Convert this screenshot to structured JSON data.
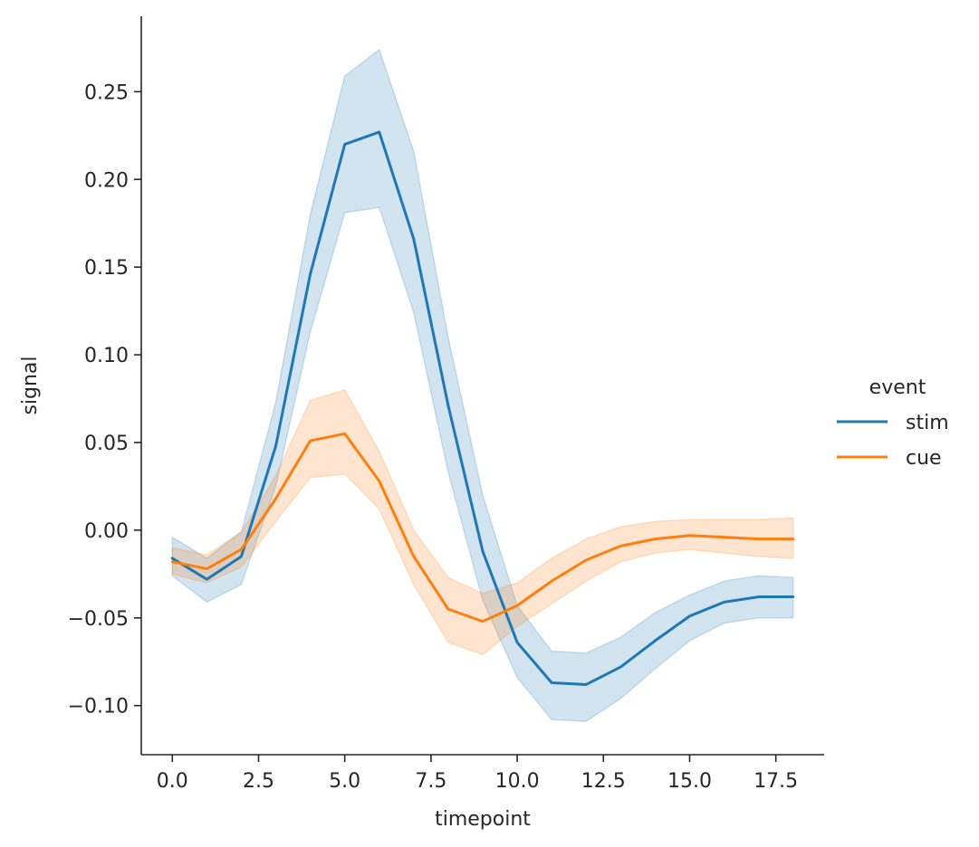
{
  "chart_data": {
    "type": "line",
    "title": "",
    "xlabel": "timepoint",
    "ylabel": "signal",
    "xlim": [
      -0.9,
      18.9
    ],
    "ylim": [
      -0.128,
      0.293
    ],
    "x_ticks": [
      0.0,
      2.5,
      5.0,
      7.5,
      10.0,
      12.5,
      15.0,
      17.5
    ],
    "x_tick_labels": [
      "0.0",
      "2.5",
      "5.0",
      "7.5",
      "10.0",
      "12.5",
      "15.0",
      "17.5"
    ],
    "y_ticks": [
      -0.1,
      -0.05,
      0.0,
      0.05,
      0.1,
      0.15,
      0.2,
      0.25
    ],
    "y_tick_labels": [
      "−0.10",
      "−0.05",
      "0.00",
      "0.05",
      "0.10",
      "0.15",
      "0.20",
      "0.25"
    ],
    "grid": false,
    "legend": {
      "title": "event",
      "placement": "right-outside"
    },
    "x": [
      0,
      1,
      2,
      3,
      4,
      5,
      6,
      7,
      8,
      9,
      10,
      11,
      12,
      13,
      14,
      15,
      16,
      17,
      18
    ],
    "series": [
      {
        "name": "stim",
        "color": "#1f77b4",
        "values": [
          -0.016,
          -0.028,
          -0.015,
          0.048,
          0.146,
          0.22,
          0.227,
          0.166,
          0.071,
          -0.012,
          -0.064,
          -0.087,
          -0.088,
          -0.078,
          -0.063,
          -0.049,
          -0.041,
          -0.038,
          -0.038
        ],
        "ci_lower": [
          -0.026,
          -0.041,
          -0.031,
          0.025,
          0.113,
          0.181,
          0.184,
          0.124,
          0.033,
          -0.04,
          -0.084,
          -0.108,
          -0.109,
          -0.096,
          -0.079,
          -0.063,
          -0.053,
          -0.05,
          -0.05
        ],
        "ci_upper": [
          -0.004,
          -0.016,
          -0.001,
          0.073,
          0.18,
          0.259,
          0.274,
          0.216,
          0.11,
          0.02,
          -0.043,
          -0.069,
          -0.07,
          -0.061,
          -0.047,
          -0.037,
          -0.029,
          -0.026,
          -0.027
        ]
      },
      {
        "name": "cue",
        "color": "#ff7f0e",
        "values": [
          -0.018,
          -0.022,
          -0.011,
          0.018,
          0.051,
          0.055,
          0.028,
          -0.015,
          -0.045,
          -0.052,
          -0.043,
          -0.029,
          -0.017,
          -0.009,
          -0.005,
          -0.003,
          -0.004,
          -0.005,
          -0.005
        ],
        "ci_lower": [
          -0.025,
          -0.03,
          -0.021,
          0.005,
          0.03,
          0.032,
          0.012,
          -0.031,
          -0.064,
          -0.071,
          -0.055,
          -0.042,
          -0.029,
          -0.018,
          -0.013,
          -0.011,
          -0.013,
          -0.015,
          -0.016
        ],
        "ci_upper": [
          -0.01,
          -0.014,
          -0.001,
          0.031,
          0.074,
          0.08,
          0.045,
          0.0,
          -0.027,
          -0.036,
          -0.03,
          -0.016,
          -0.005,
          0.002,
          0.005,
          0.006,
          0.006,
          0.006,
          0.007
        ]
      }
    ]
  }
}
